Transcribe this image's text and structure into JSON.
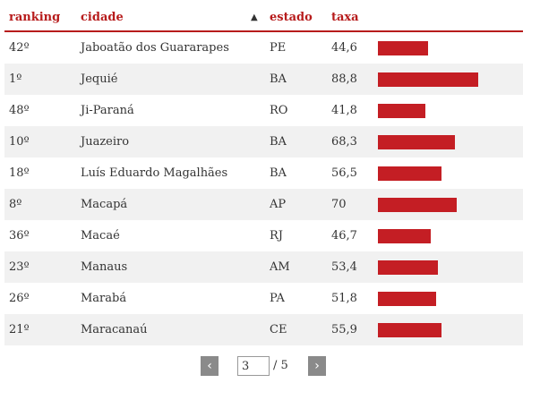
{
  "header": {
    "ranking": "ranking",
    "cidade": "cidade",
    "sort_indicator": "▲",
    "estado": "estado",
    "taxa": "taxa"
  },
  "rows": [
    {
      "ranking": "42º",
      "cidade": "Jaboatão dos Guararapes",
      "estado": "PE",
      "taxa": "44,6",
      "value": 44.6
    },
    {
      "ranking": "1º",
      "cidade": "Jequié",
      "estado": "BA",
      "taxa": "88,8",
      "value": 88.8
    },
    {
      "ranking": "48º",
      "cidade": "Ji-Paraná",
      "estado": "RO",
      "taxa": "41,8",
      "value": 41.8
    },
    {
      "ranking": "10º",
      "cidade": "Juazeiro",
      "estado": "BA",
      "taxa": "68,3",
      "value": 68.3
    },
    {
      "ranking": "18º",
      "cidade": "Luís Eduardo Magalhães",
      "estado": "BA",
      "taxa": "56,5",
      "value": 56.5
    },
    {
      "ranking": "8º",
      "cidade": "Macapá",
      "estado": "AP",
      "taxa": "70",
      "value": 70
    },
    {
      "ranking": "36º",
      "cidade": "Macaé",
      "estado": "RJ",
      "taxa": "46,7",
      "value": 46.7
    },
    {
      "ranking": "23º",
      "cidade": "Manaus",
      "estado": "AM",
      "taxa": "53,4",
      "value": 53.4
    },
    {
      "ranking": "26º",
      "cidade": "Marabá",
      "estado": "PA",
      "taxa": "51,8",
      "value": 51.8
    },
    {
      "ranking": "21º",
      "cidade": "Maracanaú",
      "estado": "CE",
      "taxa": "55,9",
      "value": 55.9
    }
  ],
  "bar_color": "#c41e24",
  "bar_max_value": 88.8,
  "pagination": {
    "prev_label": "‹",
    "next_label": "›",
    "current_page": "3",
    "total_label": "/ 5"
  }
}
